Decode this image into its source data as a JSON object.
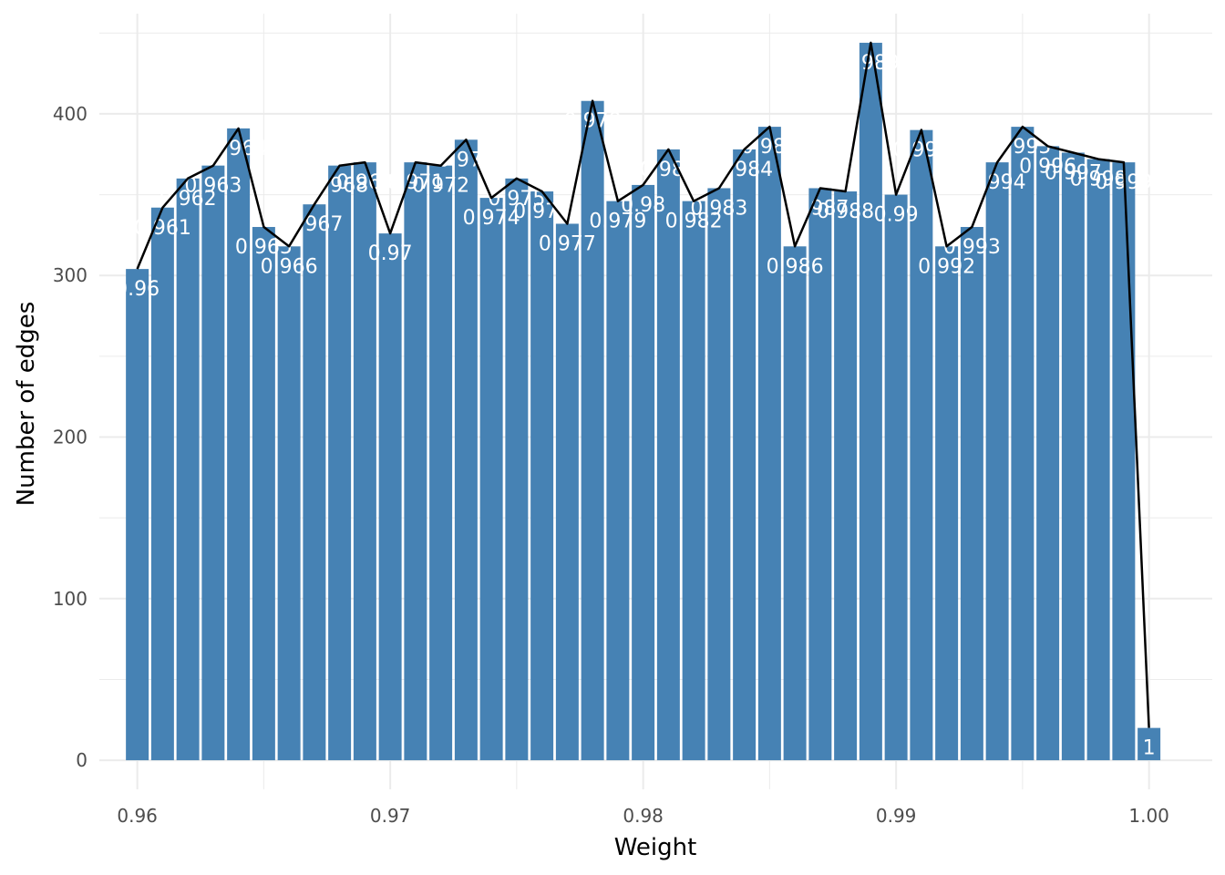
{
  "chart_data": {
    "type": "bar",
    "xlabel": "Weight",
    "ylabel": "Number of edges",
    "xlim": [
      0.9585,
      1.0025
    ],
    "ylim": [
      -18,
      462
    ],
    "x_ticks": [
      "0.96",
      "0.97",
      "0.98",
      "0.99",
      "1.00"
    ],
    "x_tick_values": [
      0.96,
      0.97,
      0.98,
      0.99,
      1.0
    ],
    "y_ticks": [
      "0",
      "100",
      "200",
      "300",
      "400"
    ],
    "y_tick_values": [
      0,
      100,
      200,
      300,
      400
    ],
    "grid": true,
    "legend": "none",
    "colors": {
      "bar": "#4682B4",
      "line": "#000000",
      "grid": "#EBEBEB",
      "label": "#FFFFFF"
    },
    "x": [
      0.96,
      0.961,
      0.962,
      0.963,
      0.964,
      0.965,
      0.966,
      0.967,
      0.968,
      0.969,
      0.97,
      0.971,
      0.972,
      0.973,
      0.974,
      0.975,
      0.976,
      0.977,
      0.978,
      0.979,
      0.98,
      0.981,
      0.982,
      0.983,
      0.984,
      0.985,
      0.986,
      0.987,
      0.988,
      0.989,
      0.99,
      0.991,
      0.992,
      0.993,
      0.994,
      0.995,
      0.996,
      0.997,
      0.998,
      0.999,
      1.0
    ],
    "values": [
      304,
      342,
      360,
      368,
      391,
      330,
      318,
      344,
      368,
      370,
      326,
      370,
      368,
      384,
      348,
      360,
      352,
      332,
      408,
      346,
      356,
      378,
      346,
      354,
      378,
      392,
      318,
      354,
      352,
      444,
      350,
      390,
      318,
      330,
      370,
      392,
      380,
      376,
      372,
      370,
      20
    ],
    "labels": [
      "0.96",
      "0.961",
      "0.962",
      "0.963",
      "0.964",
      "0.965",
      "0.966",
      "0.967",
      "0.968",
      "0.969",
      "0.97",
      "0.971",
      "0.972",
      "0.973",
      "0.974",
      "0.975",
      "0.976",
      "0.977",
      "0.978",
      "0.979",
      "0.98",
      "0.981",
      "0.982",
      "0.983",
      "0.984",
      "0.985",
      "0.986",
      "0.987",
      "0.988",
      "0.989",
      "0.99",
      "0.991",
      "0.992",
      "0.993",
      "0.994",
      "0.995",
      "0.996",
      "0.997",
      "0.998",
      "0.999",
      "1"
    ],
    "overlay_line": "counts connected across bar centers"
  }
}
